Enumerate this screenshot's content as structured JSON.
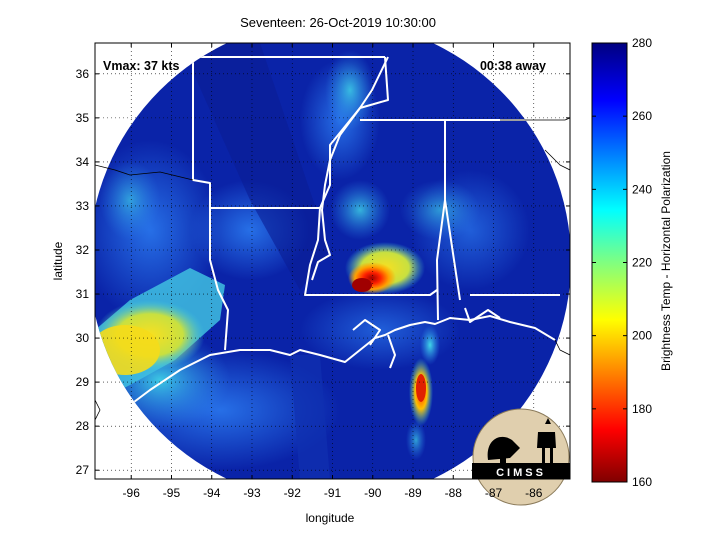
{
  "title": "Seventeen: 26-Oct-2019 10:30:00",
  "annotations": {
    "vmax": "Vmax: 37 kts",
    "time_away": "00:38 away"
  },
  "axes": {
    "xlabel": "longitude",
    "ylabel": "latitude",
    "xlim": [
      -96.9,
      -85.1
    ],
    "ylim": [
      26.8,
      36.7
    ],
    "xticks": [
      "-96",
      "-95",
      "-94",
      "-93",
      "-92",
      "-91",
      "-90",
      "-89",
      "-88",
      "-87",
      "-86"
    ],
    "yticks": [
      "27",
      "28",
      "29",
      "30",
      "31",
      "32",
      "33",
      "34",
      "35",
      "36"
    ],
    "grid": "dotted"
  },
  "colorbar": {
    "label": "Brightness Temp - Horizontal Polarization",
    "ticks": [
      "280",
      "260",
      "240",
      "220",
      "200",
      "180",
      "160"
    ],
    "range": [
      160,
      280
    ],
    "colormap": "jet"
  },
  "logo": {
    "text": "CIMSS"
  },
  "colors": {
    "deep_blue": "#0a1f9a",
    "mid_blue": "#1f5fe0",
    "light_blue": "#3aa0f0",
    "cyan": "#40e0d0",
    "yellow": "#f5e020",
    "orange": "#ff8a10",
    "red": "#d01010",
    "boundary": "#ffffff"
  }
}
